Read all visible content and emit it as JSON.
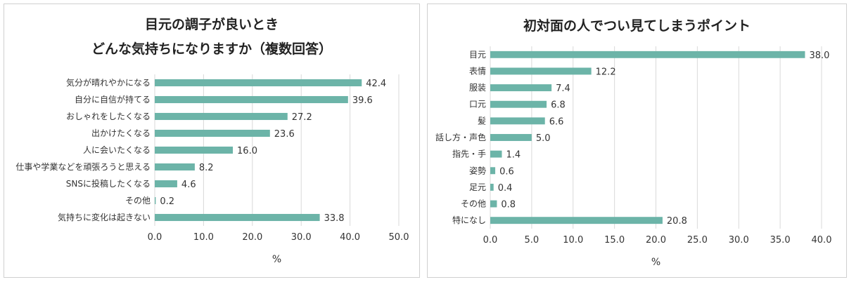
{
  "chart_data": [
    {
      "type": "bar",
      "orientation": "horizontal",
      "title": [
        "目元の調子が良いとき",
        "どんな気持ちになりますか（複数回答）"
      ],
      "categories": [
        "気分が晴れやかになる",
        "自分に自信が持てる",
        "おしゃれをしたくなる",
        "出かけたくなる",
        "人に会いたくなる",
        "仕事や学業などを頑張ろうと思える",
        "SNSに投稿したくなる",
        "その他",
        "気持ちに変化は起きない"
      ],
      "values": [
        42.4,
        39.6,
        27.2,
        23.6,
        16.0,
        8.2,
        4.6,
        0.2,
        33.8
      ],
      "value_labels": [
        "42.4",
        "39.6",
        "27.2",
        "23.6",
        "16.0",
        "8.2",
        "4.6",
        "0.2",
        "33.8"
      ],
      "xlim": [
        0,
        50
      ],
      "xticks": [
        "0.0",
        "10.0",
        "20.0",
        "30.0",
        "40.0",
        "50.0"
      ],
      "xlabel": "%",
      "ylabel": "",
      "grid": true,
      "bar_color": "#6cb4a8"
    },
    {
      "type": "bar",
      "orientation": "horizontal",
      "title": [
        "初対面の人でつい見てしまうポイント"
      ],
      "categories": [
        "目元",
        "表情",
        "服装",
        "口元",
        "髪",
        "話し方・声色",
        "指先・手",
        "姿勢",
        "足元",
        "その他",
        "特になし"
      ],
      "values": [
        38.0,
        12.2,
        7.4,
        6.8,
        6.6,
        5.0,
        1.4,
        0.6,
        0.4,
        0.8,
        20.8
      ],
      "value_labels": [
        "38.0",
        "12.2",
        "7.4",
        "6.8",
        "6.6",
        "5.0",
        "1.4",
        "0.6",
        "0.4",
        "0.8",
        "20.8"
      ],
      "xlim": [
        0,
        40
      ],
      "xticks": [
        "0.0",
        "5.0",
        "10.0",
        "15.0",
        "20.0",
        "25.0",
        "30.0",
        "35.0",
        "40.0"
      ],
      "xlabel": "%",
      "ylabel": "",
      "grid": true,
      "bar_color": "#6cb4a8"
    }
  ]
}
